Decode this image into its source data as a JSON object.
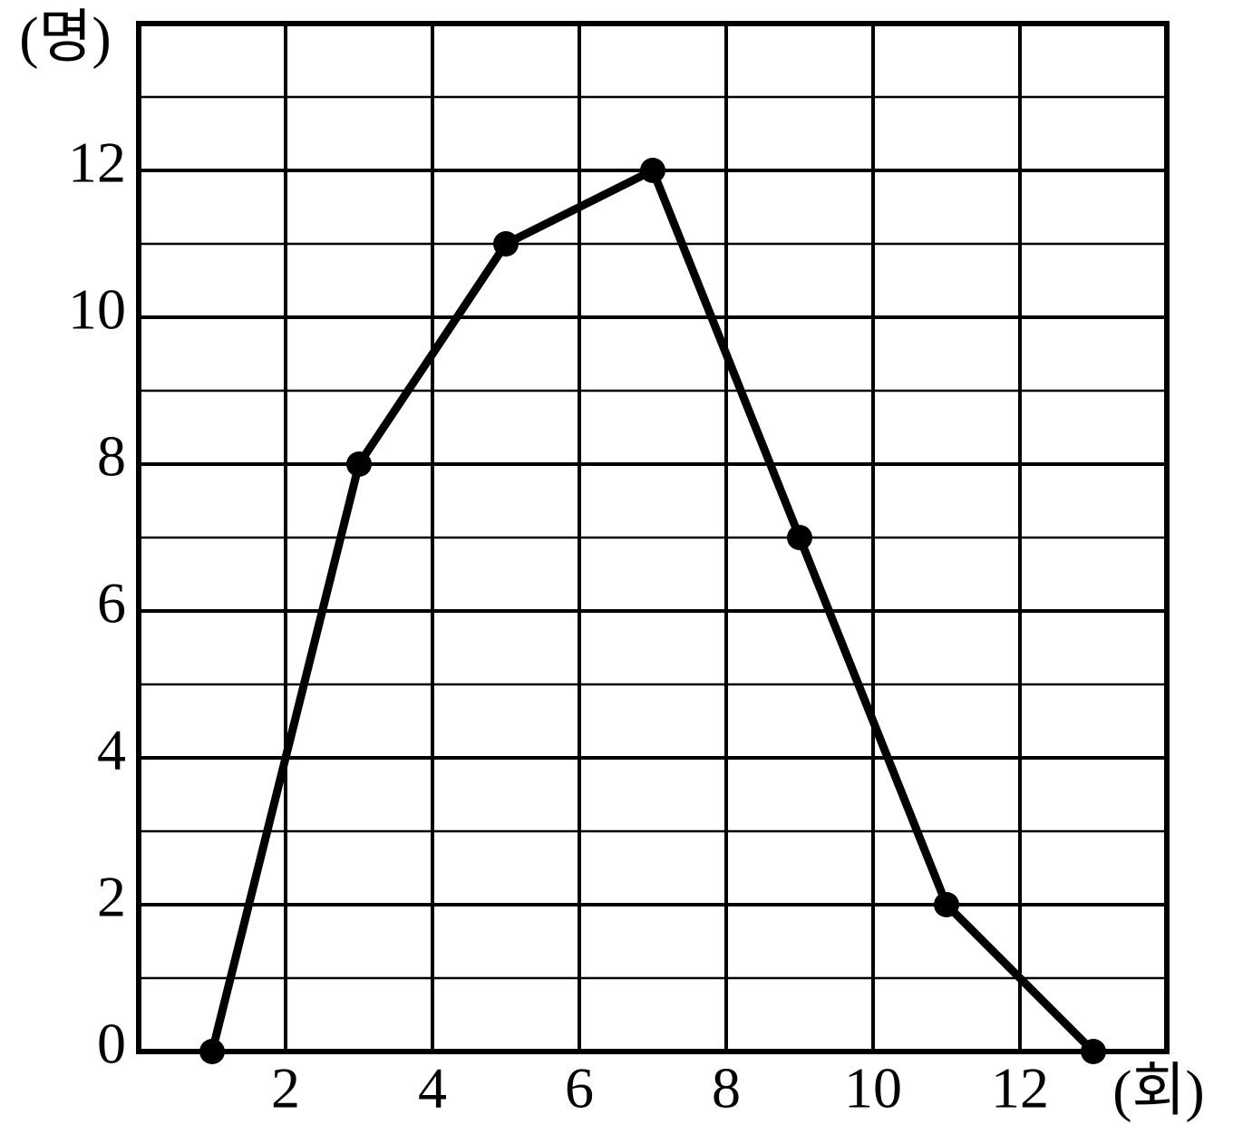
{
  "chart_data": {
    "type": "line",
    "y_label": "(명)",
    "x_label": "(회)",
    "x": [
      1,
      3,
      5,
      7,
      9,
      11,
      13
    ],
    "values": [
      0,
      8,
      11,
      12,
      7,
      2,
      0
    ],
    "color": "#000000",
    "xlim": [
      0,
      14
    ],
    "ylim": [
      0,
      14
    ],
    "xticks": [
      2,
      4,
      6,
      8,
      10,
      12
    ],
    "yticks": [
      0,
      2,
      4,
      6,
      8,
      10,
      12
    ],
    "grid": true,
    "minor_grid": true,
    "markers": true
  }
}
